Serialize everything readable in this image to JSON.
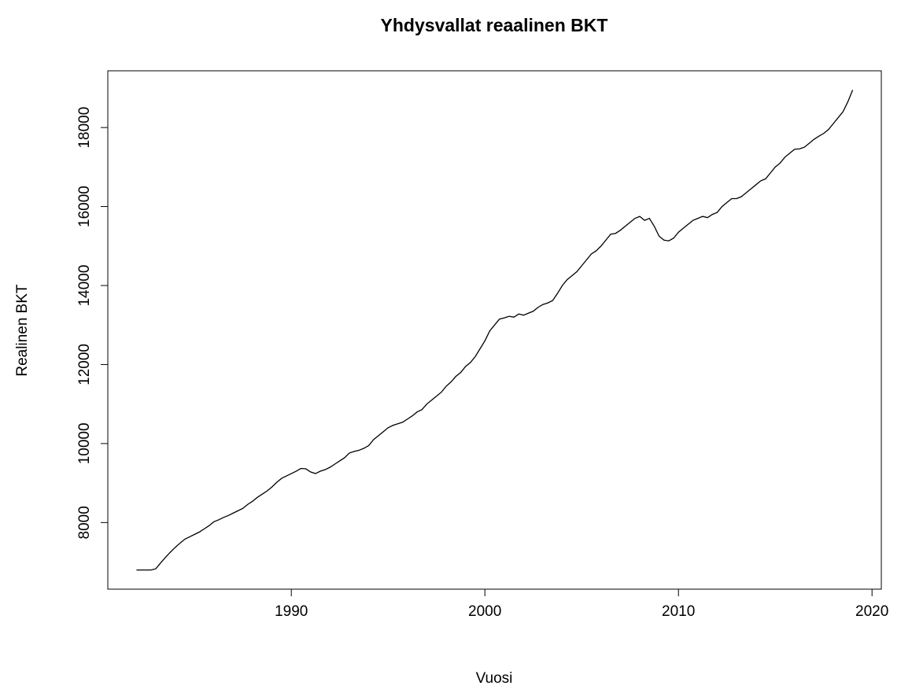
{
  "chart_data": {
    "type": "line",
    "title": "Yhdysvallat reaalinen BKT",
    "x_label": "Vuosi",
    "y_label": "Realinen BKT",
    "color": "#000000",
    "x": [
      1982,
      1982.25,
      1982.5,
      1982.75,
      1983,
      1983.25,
      1983.5,
      1983.75,
      1984,
      1984.25,
      1984.5,
      1984.75,
      1985,
      1985.25,
      1985.5,
      1985.75,
      1986,
      1986.25,
      1986.5,
      1986.75,
      1987,
      1987.25,
      1987.5,
      1987.75,
      1988,
      1988.25,
      1988.5,
      1988.75,
      1989,
      1989.25,
      1989.5,
      1989.75,
      1990,
      1990.25,
      1990.5,
      1990.75,
      1991,
      1991.25,
      1991.5,
      1991.75,
      1992,
      1992.25,
      1992.5,
      1992.75,
      1993,
      1993.25,
      1993.5,
      1993.75,
      1994,
      1994.25,
      1994.5,
      1994.75,
      1995,
      1995.25,
      1995.5,
      1995.75,
      1996,
      1996.25,
      1996.5,
      1996.75,
      1997,
      1997.25,
      1997.5,
      1997.75,
      1998,
      1998.25,
      1998.5,
      1998.75,
      1999,
      1999.25,
      1999.5,
      1999.75,
      2000,
      2000.25,
      2000.5,
      2000.75,
      2001,
      2001.25,
      2001.5,
      2001.75,
      2002,
      2002.25,
      2002.5,
      2002.75,
      2003,
      2003.25,
      2003.5,
      2003.75,
      2004,
      2004.25,
      2004.5,
      2004.75,
      2005,
      2005.25,
      2005.5,
      2005.75,
      2006,
      2006.25,
      2006.5,
      2006.75,
      2007,
      2007.25,
      2007.5,
      2007.75,
      2008,
      2008.25,
      2008.5,
      2008.75,
      2009,
      2009.25,
      2009.5,
      2009.75,
      2010,
      2010.25,
      2010.5,
      2010.75,
      2011,
      2011.25,
      2011.5,
      2011.75,
      2012,
      2012.25,
      2012.5,
      2012.75,
      2013,
      2013.25,
      2013.5,
      2013.75,
      2014,
      2014.25,
      2014.5,
      2014.75,
      2015,
      2015.25,
      2015.5,
      2015.75,
      2016,
      2016.25,
      2016.5,
      2016.75,
      2017,
      2017.25,
      2017.5,
      2017.75,
      2018,
      2018.25,
      2018.5,
      2018.75,
      2019
    ],
    "values": [
      6800,
      6800,
      6800,
      6800,
      6830,
      6980,
      7120,
      7250,
      7370,
      7480,
      7580,
      7640,
      7700,
      7760,
      7840,
      7920,
      8020,
      8070,
      8130,
      8180,
      8240,
      8300,
      8360,
      8460,
      8540,
      8640,
      8720,
      8800,
      8900,
      9020,
      9120,
      9180,
      9240,
      9300,
      9370,
      9360,
      9280,
      9240,
      9300,
      9340,
      9400,
      9480,
      9560,
      9640,
      9760,
      9800,
      9830,
      9880,
      9950,
      10100,
      10200,
      10300,
      10400,
      10460,
      10500,
      10540,
      10620,
      10700,
      10800,
      10860,
      11000,
      11100,
      11200,
      11300,
      11450,
      11560,
      11700,
      11800,
      11950,
      12050,
      12200,
      12400,
      12600,
      12850,
      13000,
      13150,
      13180,
      13220,
      13200,
      13280,
      13250,
      13300,
      13350,
      13450,
      13520,
      13560,
      13620,
      13800,
      14000,
      14150,
      14250,
      14350,
      14500,
      14650,
      14800,
      14880,
      15000,
      15150,
      15300,
      15320,
      15400,
      15500,
      15600,
      15700,
      15750,
      15650,
      15700,
      15500,
      15250,
      15150,
      15130,
      15200,
      15350,
      15450,
      15550,
      15650,
      15700,
      15750,
      15720,
      15800,
      15850,
      16000,
      16100,
      16200,
      16200,
      16250,
      16350,
      16450,
      16550,
      16650,
      16700,
      16850,
      17000,
      17100,
      17250,
      17350,
      17450,
      17460,
      17500,
      17600,
      17700,
      17780,
      17850,
      17950,
      18100,
      18250,
      18400,
      18650,
      18950
    ],
    "xlim": [
      1980.52,
      2020.48
    ],
    "xticks": [
      1990,
      2000,
      2010,
      2020
    ],
    "ylim": [
      6314,
      19436
    ],
    "yticks": [
      8000,
      10000,
      12000,
      14000,
      16000,
      18000
    ]
  }
}
